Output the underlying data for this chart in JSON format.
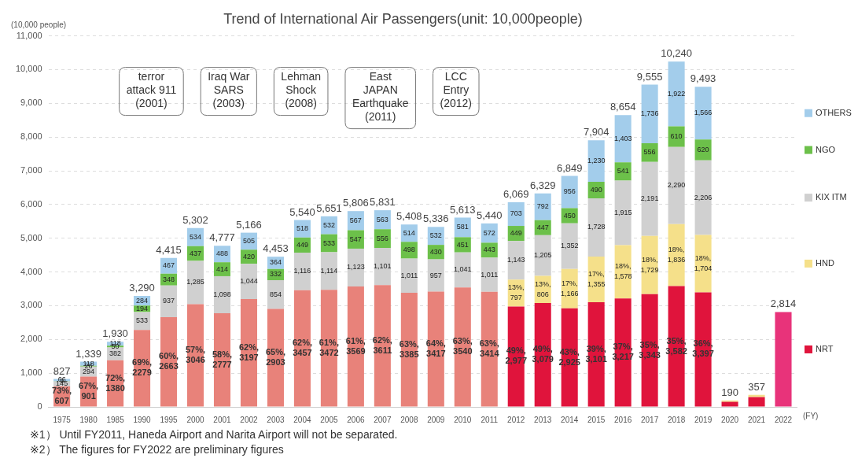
{
  "chart_data": {
    "type": "bar",
    "stacked": true,
    "title": "Trend of International Air Passengers(unit: 10,000people)",
    "ylabel": "(10,000 people)",
    "xlabel": "(FY)",
    "categories": [
      "1975",
      "1980",
      "1985",
      "1990",
      "1995",
      "2000",
      "2001",
      "2002",
      "2003",
      "2004",
      "2005",
      "2006",
      "2007",
      "2008",
      "2009",
      "2010",
      "2011",
      "2012",
      "2013",
      "2014",
      "2015",
      "2016",
      "2017",
      "2018",
      "2019",
      "2020",
      "2021",
      "2022"
    ],
    "series": [
      {
        "name": "NRT",
        "colors": [
          "#e8827a",
          "#e8827a",
          "#e8827a",
          "#e8827a",
          "#e8827a",
          "#e8827a",
          "#e8827a",
          "#e8827a",
          "#e8827a",
          "#e8827a",
          "#e8827a",
          "#e8827a",
          "#e8827a",
          "#e8827a",
          "#e8827a",
          "#e8827a",
          "#e8827a",
          "#e0143c",
          "#e0143c",
          "#e0143c",
          "#e0143c",
          "#e0143c",
          "#e0143c",
          "#e0143c",
          "#e0143c",
          "#e0143c",
          "#e0143c",
          "#e8337a"
        ],
        "values": [
          607,
          901,
          1380,
          2279,
          2663,
          3046,
          2777,
          3197,
          2903,
          3457,
          3472,
          3569,
          3611,
          3385,
          3417,
          3540,
          3414,
          2977,
          3079,
          2925,
          3101,
          3217,
          3343,
          3582,
          3397,
          150,
          290,
          2814
        ],
        "value_labels": [
          "73%, 607",
          "67%, 901",
          "72%, 1380",
          "69%, 2279",
          "60%, 2663",
          "57%, 3046",
          "58%, 2777",
          "62%, 3197",
          "65%, 2903",
          "62%, 3457",
          "61%, 3472",
          "61%, 3569",
          "62%, 3611",
          "63%, 3385",
          "64%, 3417",
          "63%, 3540",
          "63%, 3414",
          "49%, 2,977",
          "49%, 3,079",
          "43%, 2,925",
          "39%, 3,101",
          "37%, 3,217",
          "35%, 3,343",
          "35%, 3,582",
          "36%, 3,397",
          null,
          null,
          null
        ]
      },
      {
        "name": "HND",
        "color": "#f5e08a",
        "values": [
          null,
          null,
          null,
          null,
          null,
          null,
          null,
          null,
          null,
          null,
          null,
          null,
          null,
          null,
          null,
          null,
          null,
          797,
          806,
          1166,
          1355,
          1578,
          1729,
          1836,
          1704,
          40,
          67,
          null
        ],
        "value_labels": [
          null,
          null,
          null,
          null,
          null,
          null,
          null,
          null,
          null,
          null,
          null,
          null,
          null,
          null,
          null,
          null,
          null,
          "13%, 797",
          "13%, 806",
          "17%, 1,166",
          "17%, 1,355",
          "18%, 1,578",
          "18%, 1,729",
          "18%, 1,836",
          "18%, 1,704",
          null,
          null,
          null
        ]
      },
      {
        "name": "KIX ITM",
        "color": "#d0d0d0",
        "values": [
          145,
          294,
          382,
          533,
          937,
          1285,
          1098,
          1044,
          854,
          1116,
          1114,
          1123,
          1101,
          1011,
          957,
          1041,
          1011,
          1143,
          1205,
          1352,
          1728,
          1915,
          2191,
          2290,
          2206,
          null,
          null,
          null
        ],
        "value_labels": [
          "145",
          "294",
          "382",
          "533",
          "937",
          "1,285",
          "1,098",
          "1,044",
          "854",
          "1,116",
          "1,114",
          "1,123",
          "1,101",
          "1,011",
          "957",
          "1,041",
          "1,011",
          "1,143",
          "1,205",
          "1,352",
          "1,728",
          "1,915",
          "2,191",
          "2,290",
          "2,206",
          null,
          null,
          null
        ]
      },
      {
        "name": "NGO",
        "color": "#6cc04a",
        "values": [
          9,
          26,
          50,
          194,
          348,
          437,
          414,
          420,
          332,
          449,
          533,
          547,
          556,
          498,
          430,
          451,
          443,
          449,
          447,
          450,
          490,
          541,
          556,
          610,
          620,
          null,
          null,
          null
        ],
        "value_labels": [
          "9",
          "26",
          "50",
          "194",
          "348",
          "437",
          "414",
          "420",
          "332",
          "449",
          "533",
          "547",
          "556",
          "498",
          "430",
          "451",
          "443",
          "449",
          "447",
          "450",
          "490",
          "541",
          "556",
          "610",
          "620",
          null,
          null,
          null
        ]
      },
      {
        "name": "OTHERS",
        "color": "#a3cdeb",
        "values": [
          66,
          118,
          118,
          284,
          467,
          534,
          488,
          505,
          364,
          518,
          532,
          567,
          563,
          514,
          532,
          581,
          572,
          703,
          792,
          956,
          1230,
          1403,
          1736,
          1922,
          1566,
          null,
          null,
          null
        ],
        "value_labels": [
          "66",
          "118",
          "118",
          "284",
          "467",
          "534",
          "488",
          "505",
          "364",
          "518",
          "532",
          "567",
          "563",
          "514",
          "532",
          "581",
          "572",
          "703",
          "792",
          "956",
          "1,230",
          "1,403",
          "1,736",
          "1,922",
          "1,566",
          null,
          null,
          null
        ]
      }
    ],
    "totals": [
      "827",
      "1,339",
      "1,930",
      "3,290",
      "4,415",
      "5,302",
      "4,777",
      "5,166",
      "4,453",
      "5,540",
      "5,651",
      "5,806",
      "5,831",
      "5,408",
      "5,336",
      "5,613",
      "5,440",
      "6,069",
      "6,329",
      "6,849",
      "7,904",
      "8,654",
      "9,555",
      "10,240",
      "9,493",
      "190",
      "357",
      "2,814"
    ],
    "ylim": [
      0,
      11000
    ],
    "yticks": [
      0,
      {
        "value": 1000,
        "label": "1,000"
      },
      {
        "value": 2000,
        "label": "2,000"
      },
      {
        "value": 3000,
        "label": "3,000"
      },
      {
        "value": 4000,
        "label": "4,000"
      },
      {
        "value": 5000,
        "label": "5,000"
      },
      {
        "value": 6000,
        "label": "6,000"
      },
      {
        "value": 7000,
        "label": "7,000"
      },
      {
        "value": 8000,
        "label": "8,000"
      },
      {
        "value": 9000,
        "label": "9,000"
      },
      {
        "value": 10000,
        "label": "10,000"
      },
      {
        "value": 11000,
        "label": "11,000"
      }
    ],
    "grid": "y",
    "legend": "right",
    "annotations": [
      "terror\nattack 911\n(2001)",
      "Iraq War\nSARS\n(2003)",
      "Lehman\nShock\n(2008)",
      "East\nJAPAN\nEarthquake\n(2011)",
      "LCC\nEntry\n(2012)",
      "※1） Until FY2011, Haneda Airport and Narita Airport will not be separated.",
      "※2） The figures for FY2022 are preliminary figures"
    ]
  }
}
